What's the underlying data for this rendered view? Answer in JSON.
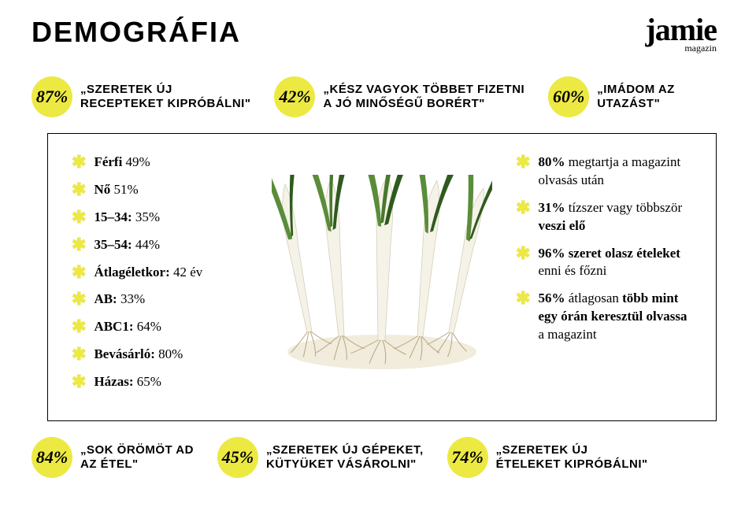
{
  "header": {
    "title": "DEMOGRÁFIA",
    "logo_main": "jamie",
    "logo_sub": "magazin"
  },
  "top_stats": [
    {
      "pct": "87%",
      "text": "SZERETEK ÚJ RECEPTEKET KIPRÓBÁLNI"
    },
    {
      "pct": "42%",
      "text": "KÉSZ VAGYOK TÖBBET FIZETNI A JÓ MINŐSÉGŰ BORÉRT"
    },
    {
      "pct": "60%",
      "text": "IMÁDOM AZ UTAZÁST"
    }
  ],
  "left_bullets": [
    {
      "html": "<b>Férfi</b> 49%"
    },
    {
      "html": "<b>Nő</b> 51%"
    },
    {
      "html": "<b>15–34:</b> 35%"
    },
    {
      "html": "<b>35–54:</b> 44%"
    },
    {
      "html": "<b>Átlagéletkor:</b> 42 év"
    },
    {
      "html": "<b>AB:</b> 33%"
    },
    {
      "html": "<b>ABC1:</b> 64%"
    },
    {
      "html": "<b>Bevásárló:</b> 80%"
    },
    {
      "html": "<b>Házas:</b> 65%"
    }
  ],
  "right_bullets": [
    {
      "html": "<b>80%</b> megtartja a magazint olvasás után"
    },
    {
      "html": "<b>31%</b> tízszer vagy többször <b>veszi elő</b>"
    },
    {
      "html": "<b>96% szeret olasz ételeket</b> enni és főzni"
    },
    {
      "html": "<b>56%</b> átlagosan <b>több mint egy órán keresztül olvassa</b> a magazint"
    }
  ],
  "bottom_stats": [
    {
      "pct": "84%",
      "text": "SOK ÖRÖMÖT AD AZ ÉTEL"
    },
    {
      "pct": "45%",
      "text": "SZERETEK ÚJ GÉPEKET, KÜTYÜKET VÁSÁROLNI"
    },
    {
      "pct": "74%",
      "text": "SZERETEK ÚJ ÉTELEKET KIPRÓBÁLNI"
    }
  ],
  "colors": {
    "accent": "#ece943",
    "text": "#000000",
    "bg": "#ffffff"
  },
  "illustration": {
    "type": "botanical-sketch",
    "subject": "leeks",
    "leaf_color": "#5a8c3a",
    "leaf_dark": "#2f5a1f",
    "stem_color": "#f5f3e8",
    "stem_shadow": "#d4cfb8",
    "root_color": "#b8a580",
    "ground_wash": "#e8dfc4"
  }
}
